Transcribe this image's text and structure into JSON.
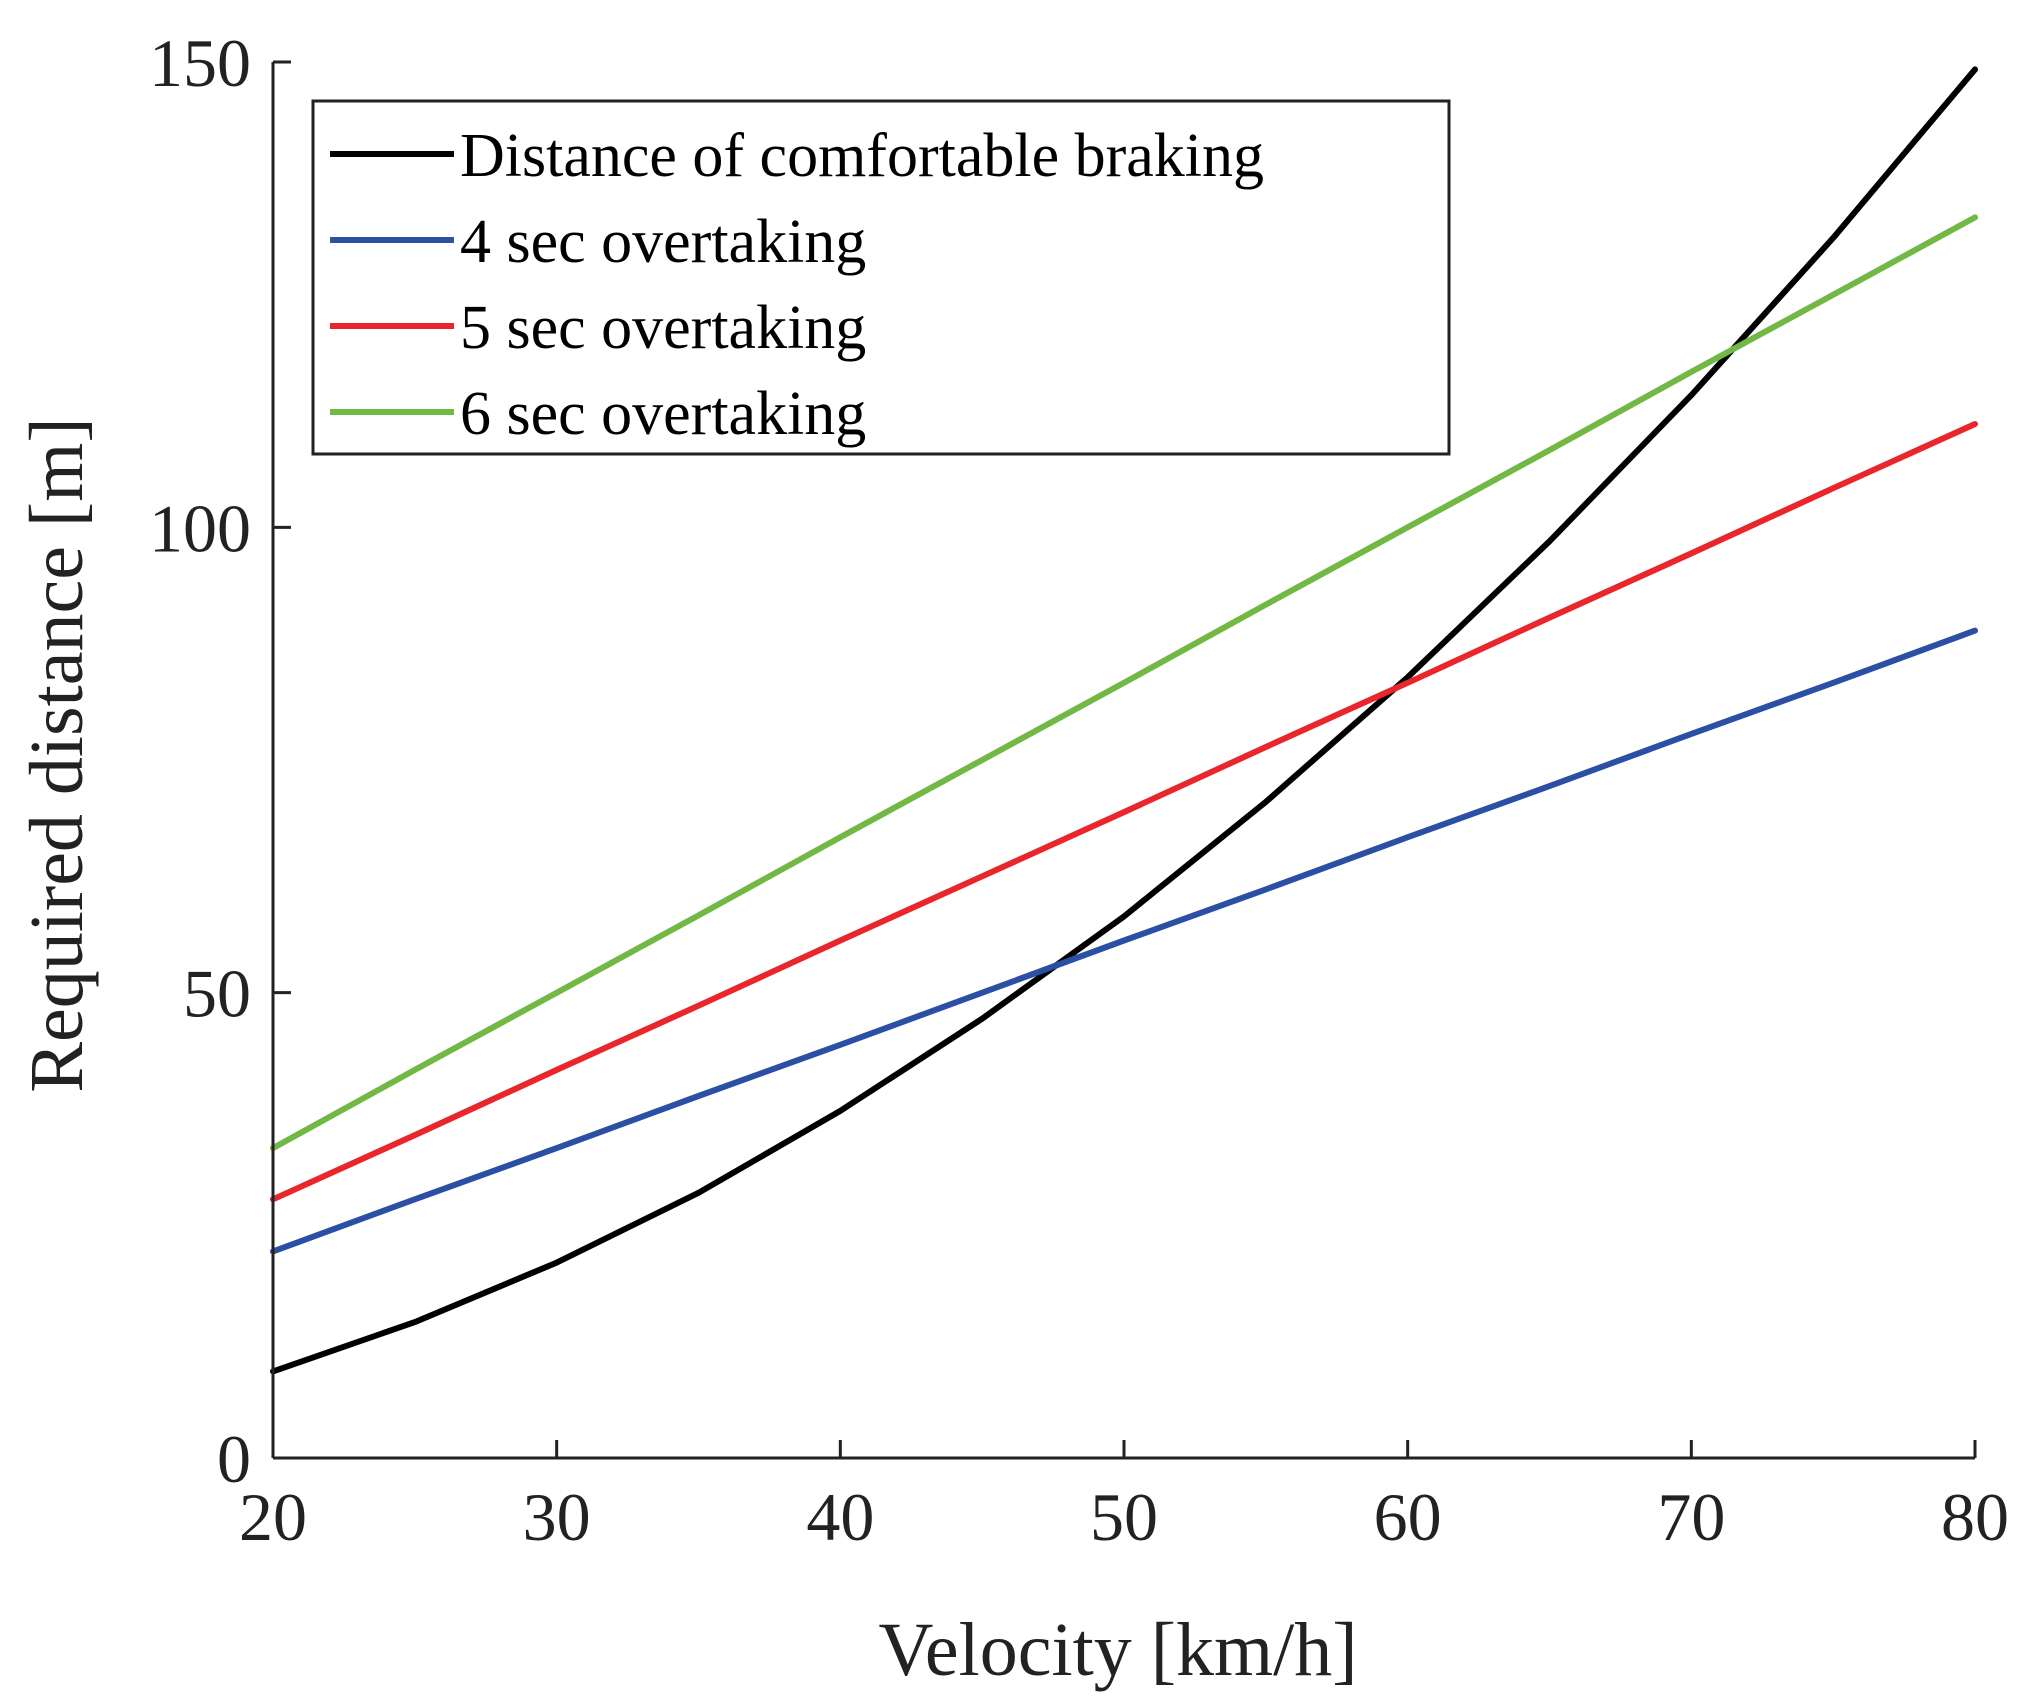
{
  "chart_data": {
    "type": "line",
    "title": "",
    "xlabel": "Velocity [km/h]",
    "ylabel": "Required distance [m]",
    "xlim": [
      20,
      80
    ],
    "ylim": [
      0,
      150
    ],
    "xticks": [
      20,
      30,
      40,
      50,
      60,
      70,
      80
    ],
    "yticks": [
      0,
      50,
      100,
      150
    ],
    "grid": false,
    "legend_position": "top-left",
    "x": [
      20,
      25,
      30,
      35,
      40,
      45,
      50,
      55,
      60,
      65,
      70,
      75,
      80
    ],
    "series": [
      {
        "name": "Distance of comfortable braking",
        "color": "#000000",
        "values": [
          9.3,
          14.6,
          21.0,
          28.5,
          37.3,
          47.2,
          58.2,
          70.5,
          83.9,
          98.5,
          114.2,
          131.1,
          149.2
        ]
      },
      {
        "name": "4 sec overtaking",
        "color": "#2a4fa5",
        "values": [
          22.2,
          27.8,
          33.3,
          38.9,
          44.4,
          50.0,
          55.6,
          61.1,
          66.7,
          72.2,
          77.8,
          83.3,
          88.9
        ]
      },
      {
        "name": "5 sec overtaking",
        "color": "#e8262b",
        "values": [
          27.8,
          34.7,
          41.7,
          48.6,
          55.6,
          62.5,
          69.4,
          76.4,
          83.3,
          90.3,
          97.2,
          104.2,
          111.1
        ]
      },
      {
        "name": "6 sec overtaking",
        "color": "#72b844",
        "values": [
          33.3,
          41.7,
          50.0,
          58.3,
          66.7,
          75.0,
          83.3,
          91.7,
          100.0,
          108.3,
          116.7,
          125.0,
          133.3
        ]
      }
    ]
  }
}
